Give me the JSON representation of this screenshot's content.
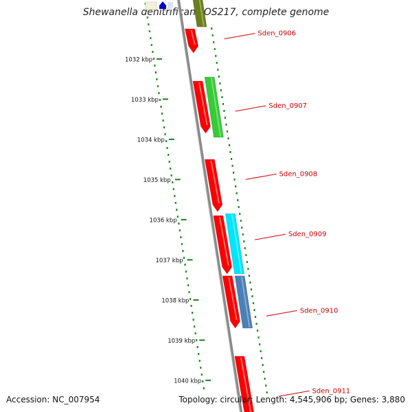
{
  "title": "Shewanella denitrificans OS217, complete genome",
  "footer": {
    "accession": "Accession: NC_007954",
    "summary": "Topology: circular; Length: 4,545,906 bp; Genes: 3,880"
  },
  "colors": {
    "backbone": "#8a8a8a",
    "ticks": "#1f7a1f",
    "dots": "#1e8c1e",
    "label": "#cc0000",
    "cds": "#ff0000",
    "olive": "#6b7f1a",
    "green": "#35cc35",
    "cyan": "#00e5ff",
    "steelblue": "#4a7fb8"
  },
  "axis": {
    "unit": "kbp",
    "ticks": [
      {
        "label": "1032 kbp",
        "kbp": 1032
      },
      {
        "label": "1033 kbp",
        "kbp": 1033
      },
      {
        "label": "1034 kbp",
        "kbp": 1034
      },
      {
        "label": "1035 kbp",
        "kbp": 1035
      },
      {
        "label": "1036 kbp",
        "kbp": 1036
      },
      {
        "label": "1037 kbp",
        "kbp": 1037
      },
      {
        "label": "1038 kbp",
        "kbp": 1038
      },
      {
        "label": "1039 kbp",
        "kbp": 1039
      },
      {
        "label": "1040 kbp",
        "kbp": 1040
      }
    ]
  },
  "features": [
    {
      "name": "Sden_0906",
      "start": 1031.25,
      "end": 1031.85,
      "color": "cds"
    },
    {
      "name": "Sden_0907",
      "start": 1032.55,
      "end": 1033.85,
      "color": "cds"
    },
    {
      "name": "Sden_0908",
      "start": 1034.5,
      "end": 1035.8,
      "color": "cds"
    },
    {
      "name": "Sden_0909",
      "start": 1035.9,
      "end": 1037.35,
      "color": "cds"
    },
    {
      "name": "Sden_0910",
      "start": 1037.4,
      "end": 1038.7,
      "color": "cds"
    },
    {
      "name": "Sden_0911",
      "start": 1039.4,
      "end": 1041.0,
      "color": "cds"
    }
  ],
  "annotation_features": [
    {
      "start": 1030.5,
      "end": 1031.2,
      "color": "olive"
    },
    {
      "start": 1032.45,
      "end": 1033.95,
      "color": "green"
    },
    {
      "start": 1035.85,
      "end": 1037.35,
      "color": "cyan"
    },
    {
      "start": 1037.4,
      "end": 1038.7,
      "color": "steelblue"
    }
  ],
  "labels": [
    {
      "text": "Sden_0906",
      "target": 1031.5
    },
    {
      "text": "Sden_0907",
      "target": 1033.3
    },
    {
      "text": "Sden_0908",
      "target": 1035.0
    },
    {
      "text": "Sden_0909",
      "target": 1036.5
    },
    {
      "text": "Sden_0910",
      "target": 1038.4
    },
    {
      "text": "Sden_0911",
      "target": 1040.4
    }
  ]
}
